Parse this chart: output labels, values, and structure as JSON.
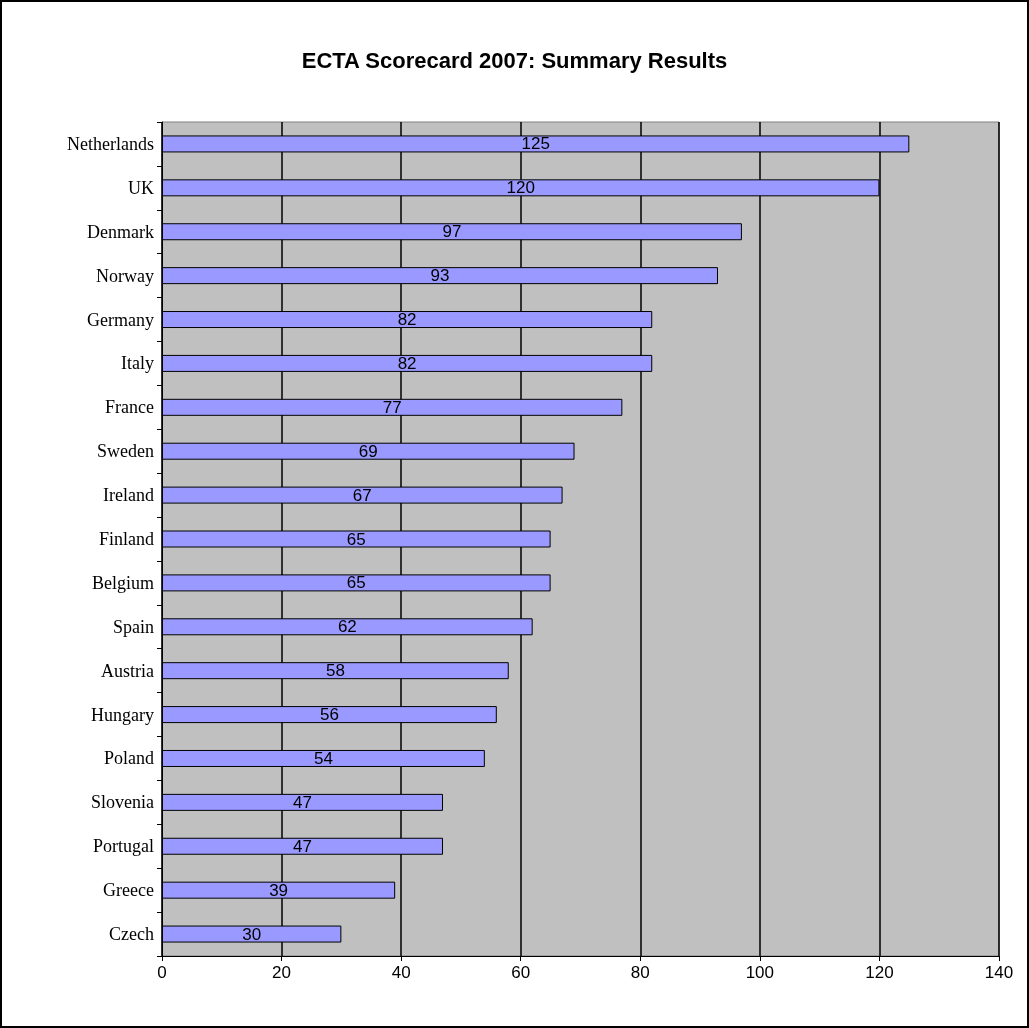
{
  "chart_data": {
    "type": "bar",
    "orientation": "horizontal",
    "title": "ECTA Scorecard 2007: Summary Results",
    "categories": [
      "Netherlands",
      "UK",
      "Denmark",
      "Norway",
      "Germany",
      "Italy",
      "France",
      "Sweden",
      "Ireland",
      "Finland",
      "Belgium",
      "Spain",
      "Austria",
      "Hungary",
      "Poland",
      "Slovenia",
      "Portugal",
      "Greece",
      "Czech"
    ],
    "values": [
      125,
      120,
      97,
      93,
      82,
      82,
      77,
      69,
      67,
      65,
      65,
      62,
      58,
      56,
      54,
      47,
      47,
      39,
      30
    ],
    "color": "#9999ff",
    "xlim": [
      0,
      140
    ],
    "xticks": [
      0,
      20,
      40,
      60,
      80,
      100,
      120,
      140
    ],
    "grid": "x",
    "data_labels": true
  }
}
